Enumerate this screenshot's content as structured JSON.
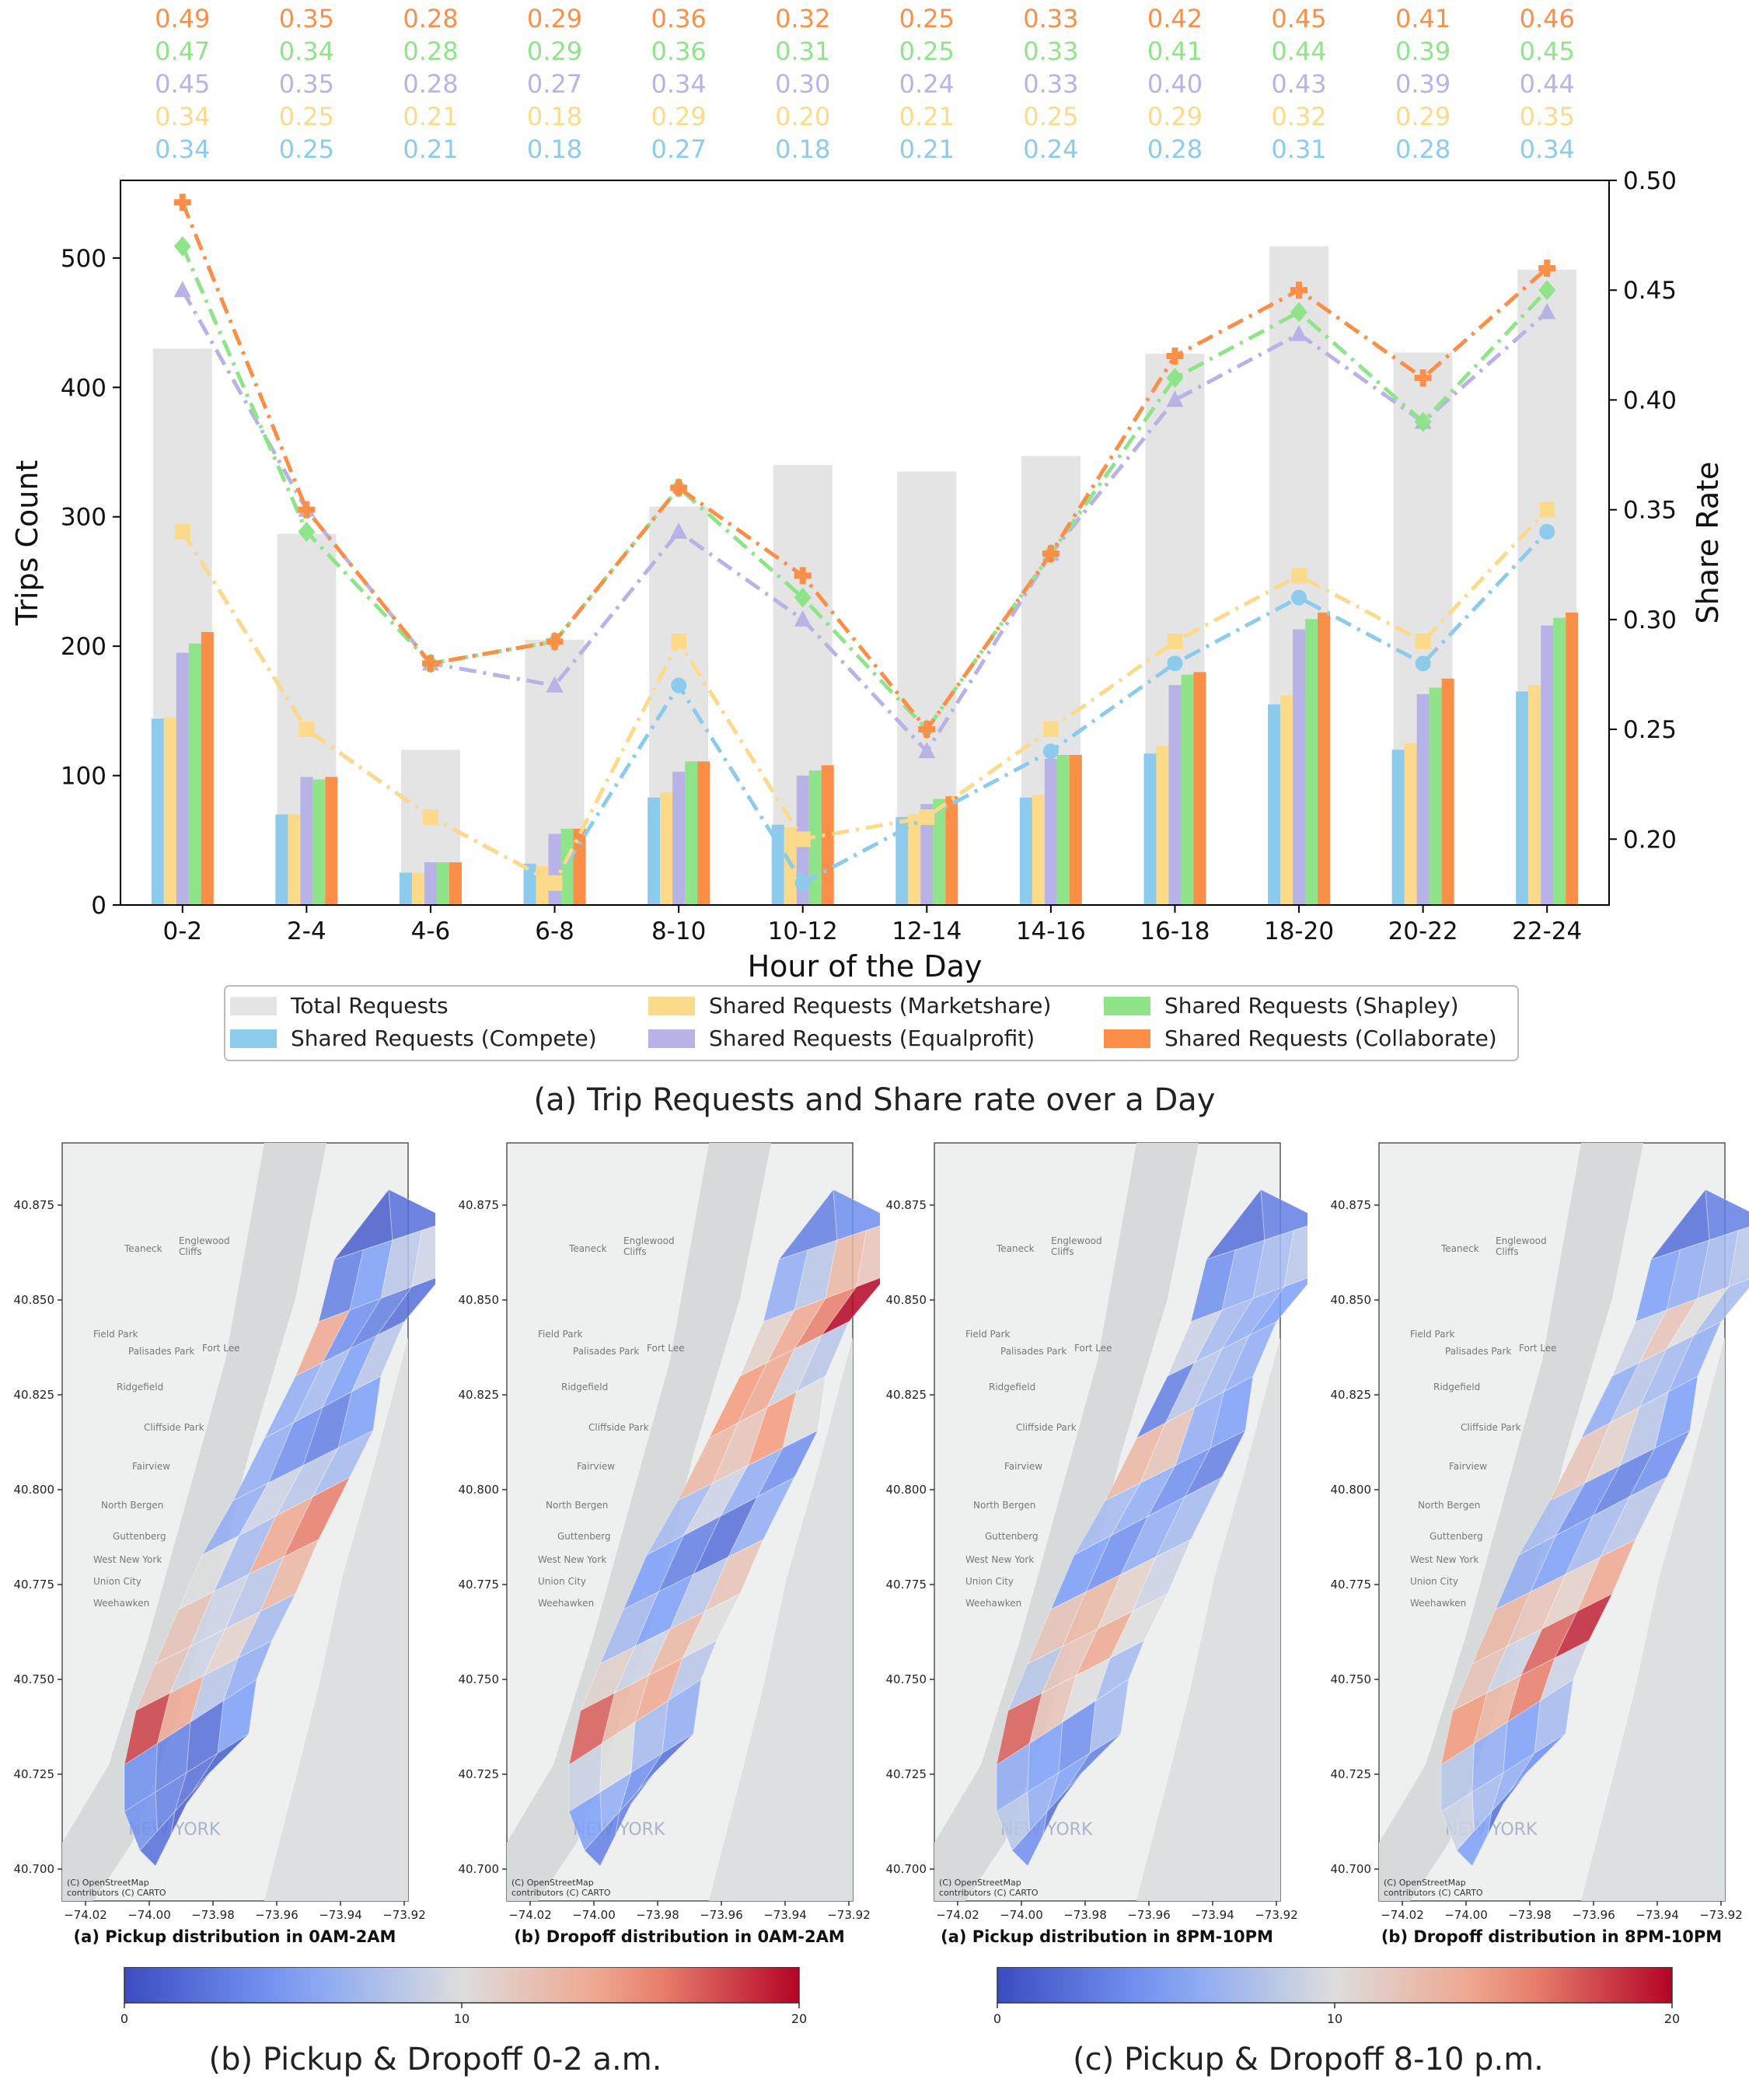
{
  "colors": {
    "total": "#e4e4e4",
    "compete": "#8ccbeb",
    "marketshare": "#fdd98a",
    "equalprofit": "#b8b3e6",
    "shapley": "#8fe48a",
    "collaborate": "#fb8f48"
  },
  "chart_data": [
    {
      "type": "bar",
      "title": "(a) Trip Requests and Share rate over a Day",
      "xlabel": "Hour of the Day",
      "ylabel": "Trips Count",
      "y2label": "Share Rate",
      "ylim": [
        0,
        560
      ],
      "y2lim": [
        0.17,
        0.5
      ],
      "yticks": [
        "0",
        "100",
        "200",
        "300",
        "400",
        "500"
      ],
      "y2ticks": [
        "0.20",
        "0.25",
        "0.30",
        "0.35",
        "0.40",
        "0.45",
        "0.50"
      ],
      "categories": [
        "0-2",
        "2-4",
        "4-6",
        "6-8",
        "8-10",
        "10-12",
        "12-14",
        "14-16",
        "16-18",
        "18-20",
        "20-22",
        "22-24"
      ],
      "bars": [
        {
          "name": "Total Requests",
          "key": "total",
          "values": [
            430,
            287,
            120,
            205,
            308,
            340,
            335,
            347,
            426,
            509,
            427,
            491
          ]
        },
        {
          "name": "Shared Requests (Compete)",
          "key": "compete",
          "values": [
            144,
            70,
            25,
            32,
            83,
            62,
            68,
            83,
            117,
            155,
            120,
            165
          ]
        },
        {
          "name": "Shared Requests (Marketshare)",
          "key": "marketshare",
          "values": [
            145,
            70,
            25,
            30,
            87,
            60,
            70,
            85,
            123,
            162,
            125,
            170
          ]
        },
        {
          "name": "Shared Requests (Equalprofit)",
          "key": "equalprofit",
          "values": [
            195,
            99,
            33,
            55,
            103,
            100,
            78,
            113,
            170,
            213,
            163,
            216
          ]
        },
        {
          "name": "Shared Requests (Shapley)",
          "key": "shapley",
          "values": [
            202,
            97,
            33,
            59,
            111,
            104,
            82,
            116,
            178,
            221,
            168,
            222
          ]
        },
        {
          "name": "Shared Requests (Collaborate)",
          "key": "collaborate",
          "values": [
            211,
            99,
            33,
            59,
            111,
            108,
            84,
            116,
            180,
            226,
            175,
            226
          ]
        }
      ],
      "lines": [
        {
          "key": "collaborate",
          "marker": "plus",
          "values": [
            0.49,
            0.35,
            0.28,
            0.29,
            0.36,
            0.32,
            0.25,
            0.33,
            0.42,
            0.45,
            0.41,
            0.46
          ]
        },
        {
          "key": "shapley",
          "marker": "diamond",
          "values": [
            0.47,
            0.34,
            0.28,
            0.29,
            0.36,
            0.31,
            0.25,
            0.33,
            0.41,
            0.44,
            0.39,
            0.45
          ]
        },
        {
          "key": "equalprofit",
          "marker": "triangle",
          "values": [
            0.45,
            0.35,
            0.28,
            0.27,
            0.34,
            0.3,
            0.24,
            0.33,
            0.4,
            0.43,
            0.39,
            0.44
          ]
        },
        {
          "key": "marketshare",
          "marker": "square",
          "values": [
            0.34,
            0.25,
            0.21,
            0.18,
            0.29,
            0.2,
            0.21,
            0.25,
            0.29,
            0.32,
            0.29,
            0.35
          ]
        },
        {
          "key": "compete",
          "marker": "circle",
          "values": [
            0.34,
            0.25,
            0.21,
            0.18,
            0.27,
            0.18,
            0.21,
            0.24,
            0.28,
            0.31,
            0.28,
            0.34
          ]
        }
      ],
      "label_rows": [
        {
          "key": "collaborate",
          "labels": [
            "0.49",
            "0.35",
            "0.28",
            "0.29",
            "0.36",
            "0.32",
            "0.25",
            "0.33",
            "0.42",
            "0.45",
            "0.41",
            "0.46"
          ]
        },
        {
          "key": "shapley",
          "labels": [
            "0.47",
            "0.34",
            "0.28",
            "0.29",
            "0.36",
            "0.31",
            "0.25",
            "0.33",
            "0.41",
            "0.44",
            "0.39",
            "0.45"
          ]
        },
        {
          "key": "equalprofit",
          "labels": [
            "0.45",
            "0.35",
            "0.28",
            "0.27",
            "0.34",
            "0.30",
            "0.24",
            "0.33",
            "0.40",
            "0.43",
            "0.39",
            "0.44"
          ]
        },
        {
          "key": "marketshare",
          "labels": [
            "0.34",
            "0.25",
            "0.21",
            "0.18",
            "0.29",
            "0.20",
            "0.21",
            "0.25",
            "0.29",
            "0.32",
            "0.29",
            "0.35"
          ]
        },
        {
          "key": "compete",
          "labels": [
            "0.34",
            "0.25",
            "0.21",
            "0.18",
            "0.27",
            "0.18",
            "0.21",
            "0.24",
            "0.28",
            "0.31",
            "0.28",
            "0.34"
          ]
        }
      ],
      "legend": [
        {
          "label": "Total Requests",
          "key": "total"
        },
        {
          "label": "Shared Requests (Marketshare)",
          "key": "marketshare"
        },
        {
          "label": "Shared Requests (Shapley)",
          "key": "shapley"
        },
        {
          "label": "Shared Requests (Compete)",
          "key": "compete"
        },
        {
          "label": "Shared Requests (Equalprofit)",
          "key": "equalprofit"
        },
        {
          "label": "Shared Requests (Collaborate)",
          "key": "collaborate"
        }
      ]
    },
    {
      "type": "heatmap",
      "title": "(b) Pickup & Dropoff 0-2 a.m.",
      "colorbar": {
        "min": 0,
        "mid": 10,
        "max": 20,
        "labels": [
          "0",
          "10",
          "20"
        ]
      },
      "maps": [
        {
          "caption": "(a) Pickup distribution in 0AM-2AM",
          "values": [
            1,
            2,
            3,
            5,
            8,
            9,
            14,
            4,
            3,
            2,
            6,
            7,
            5,
            8,
            6,
            4,
            3,
            5,
            6,
            9,
            8,
            7,
            10,
            7,
            14,
            16,
            12,
            9,
            8,
            13,
            12,
            9,
            11,
            7,
            18,
            14,
            8,
            6,
            4,
            3,
            2,
            5,
            4,
            3,
            2,
            1,
            2
          ]
        },
        {
          "caption": "(b) Dropoff distribution in 0AM-2AM",
          "values": [
            3,
            4,
            6,
            8,
            13,
            12,
            11,
            14,
            16,
            20,
            15,
            14,
            9,
            8,
            13,
            12,
            15,
            10,
            7,
            9,
            6,
            4,
            5,
            3,
            2,
            6,
            7,
            5,
            8,
            12,
            11,
            9,
            13,
            10,
            17,
            13,
            14,
            8,
            9,
            10,
            7,
            6,
            5,
            6,
            4,
            2,
            3
          ]
        }
      ]
    },
    {
      "type": "heatmap",
      "title": "(c) Pickup & Dropoff 8-10 p.m.",
      "colorbar": {
        "min": 0,
        "mid": 10,
        "max": 20,
        "labels": [
          "0",
          "10",
          "20"
        ]
      },
      "maps": [
        {
          "caption": "(a) Pickup distribution in 8PM-10PM",
          "values": [
            2,
            3,
            4,
            6,
            7,
            8,
            9,
            7,
            6,
            5,
            3,
            8,
            7,
            6,
            13,
            12,
            6,
            5,
            7,
            6,
            4,
            3,
            5,
            4,
            6,
            7,
            12,
            13,
            11,
            9,
            8,
            12,
            14,
            10,
            17,
            12,
            10,
            7,
            6,
            5,
            4,
            7,
            8,
            6,
            5,
            3,
            4
          ]
        },
        {
          "caption": "(b) Dropoff distribution in 8PM-10PM",
          "values": [
            2,
            3,
            5,
            6,
            7,
            8,
            9,
            12,
            10,
            7,
            6,
            8,
            7,
            6,
            12,
            11,
            8,
            5,
            7,
            4,
            3,
            4,
            6,
            5,
            7,
            8,
            13,
            12,
            11,
            14,
            12,
            9,
            17,
            19,
            15,
            13,
            16,
            9,
            8,
            6,
            5,
            7,
            9,
            7,
            6,
            4,
            5
          ]
        }
      ],
      "axis": {
        "yticks": [
          "40.875",
          "40.850",
          "40.825",
          "40.800",
          "40.775",
          "40.750",
          "40.725",
          "40.700"
        ],
        "xticks": [
          "−74.02",
          "−74.00",
          "−73.98",
          "−73.96",
          "−73.94",
          "−73.92"
        ],
        "places": [
          "Teaneck",
          "Englewood",
          "Cliffs",
          "Field Park",
          "Palisades Park",
          "Fort Lee",
          "Ridgefield",
          "Cliffside Park",
          "Fairview",
          "North Bergen",
          "Guttenberg",
          "West New York",
          "Union City",
          "Weehawken",
          "NEW YORK"
        ],
        "attribution": [
          "(C) OpenStreetMap",
          "contributors (C) CARTO"
        ]
      }
    }
  ]
}
